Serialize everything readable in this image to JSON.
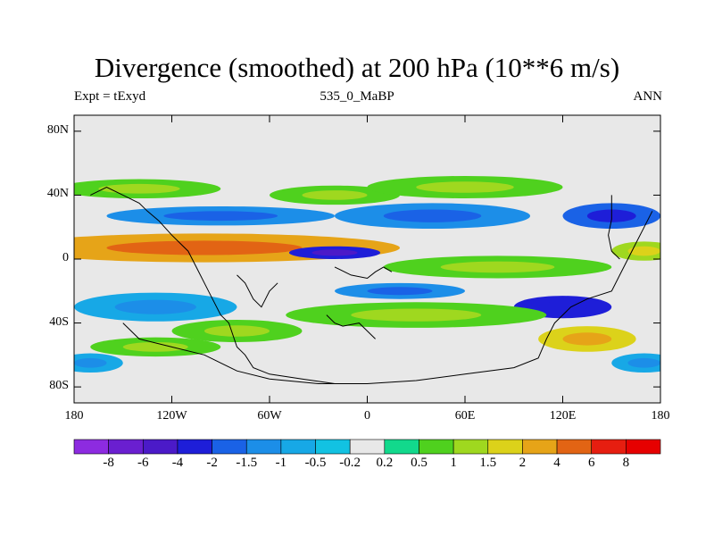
{
  "chart_data": {
    "type": "heatmap",
    "title": "Divergence (smoothed) at 200 hPa (10**6 m/s)",
    "subtitle_left": "Expt = tExyd",
    "subtitle_center": "535_0_MaBP",
    "subtitle_right": "ANN",
    "x_ticks": [
      "180",
      "120W",
      "60W",
      "0",
      "60E",
      "120E",
      "180"
    ],
    "y_ticks": [
      "80N",
      "40N",
      "0",
      "40S",
      "80S"
    ],
    "x_tick_values": [
      -180,
      -120,
      -60,
      0,
      60,
      120,
      180
    ],
    "y_tick_values": [
      80,
      40,
      0,
      -40,
      -80
    ],
    "xlim": [
      -180,
      180
    ],
    "ylim": [
      -90,
      90
    ],
    "levels": [
      "-8",
      "-6",
      "-4",
      "-2",
      "-1.5",
      "-1",
      "-0.5",
      "-0.2",
      "0.2",
      "0.5",
      "1",
      "1.5",
      "2",
      "4",
      "6",
      "8"
    ],
    "colors": [
      "#8d2be0",
      "#6a1fd0",
      "#4b1ac8",
      "#1e1ed8",
      "#1a62e6",
      "#1c8ee8",
      "#17a8e6",
      "#12c2e2",
      "#e8e8e8",
      "#12d98c",
      "#4fd11e",
      "#9fd81f",
      "#dcd21a",
      "#e6a418",
      "#e26414",
      "#e61e10",
      "#e60000"
    ],
    "field_blobs": [
      {
        "lon": -100,
        "lat": 7,
        "rlon": 120,
        "rlat": 9,
        "value": 3
      },
      {
        "lon": -20,
        "lat": 4,
        "rlon": 28,
        "rlat": 4,
        "value": -3
      },
      {
        "lon": -90,
        "lat": 27,
        "rlon": 70,
        "rlat": 6,
        "value": -1.2
      },
      {
        "lon": 40,
        "lat": 27,
        "rlon": 60,
        "rlat": 8,
        "value": -1.2
      },
      {
        "lon": 150,
        "lat": 27,
        "rlon": 30,
        "rlat": 8,
        "value": -1.8
      },
      {
        "lon": -140,
        "lat": 44,
        "rlon": 50,
        "rlat": 6,
        "value": 0.8
      },
      {
        "lon": -20,
        "lat": 40,
        "rlon": 40,
        "rlat": 6,
        "value": 0.8
      },
      {
        "lon": 60,
        "lat": 45,
        "rlon": 60,
        "rlat": 7,
        "value": 0.8
      },
      {
        "lon": 80,
        "lat": -5,
        "rlon": 70,
        "rlat": 7,
        "value": 0.7
      },
      {
        "lon": 20,
        "lat": -20,
        "rlon": 40,
        "rlat": 5,
        "value": -1.2
      },
      {
        "lon": 120,
        "lat": -30,
        "rlon": 30,
        "rlat": 7,
        "value": -2.5
      },
      {
        "lon": 30,
        "lat": -35,
        "rlon": 80,
        "rlat": 8,
        "value": 0.9
      },
      {
        "lon": -130,
        "lat": -30,
        "rlon": 50,
        "rlat": 9,
        "value": -0.8
      },
      {
        "lon": -80,
        "lat": -45,
        "rlon": 40,
        "rlat": 7,
        "value": 0.8
      },
      {
        "lon": 135,
        "lat": -50,
        "rlon": 30,
        "rlat": 8,
        "value": 1.5
      },
      {
        "lon": -130,
        "lat": -55,
        "rlon": 40,
        "rlat": 6,
        "value": 0.8
      },
      {
        "lon": -170,
        "lat": -65,
        "rlon": 20,
        "rlat": 6,
        "value": -0.8
      },
      {
        "lon": 170,
        "lat": -65,
        "rlon": 20,
        "rlat": 6,
        "value": -0.8
      },
      {
        "lon": 170,
        "lat": 5,
        "rlon": 20,
        "rlat": 6,
        "value": 1.2
      }
    ]
  }
}
